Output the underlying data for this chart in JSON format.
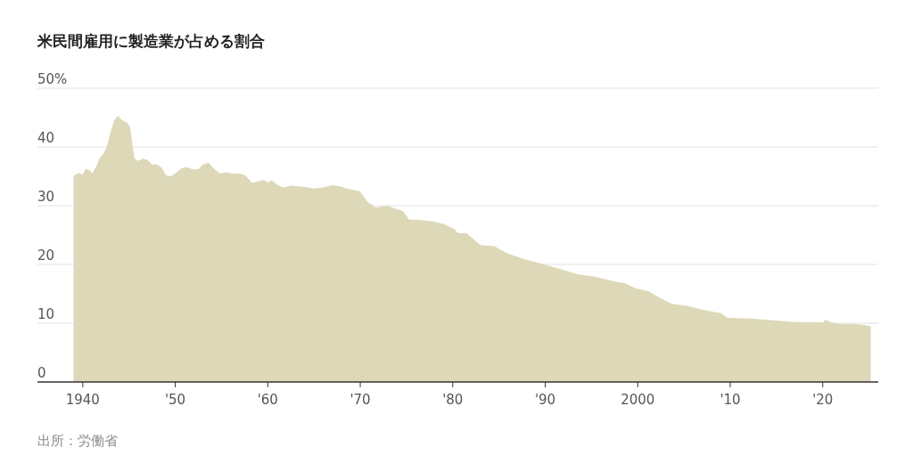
{
  "chart_data": {
    "type": "area",
    "title": "米民間雇用に製造業が占める割合",
    "annotations": [
      "出所：労働省"
    ],
    "xlim": [
      1935.1,
      2026
    ],
    "ylim": [
      0,
      50
    ],
    "xticks": [
      {
        "value": 1940,
        "label": "1940"
      },
      {
        "value": 1950,
        "label": "'50"
      },
      {
        "value": 1960,
        "label": "'60"
      },
      {
        "value": 1970,
        "label": "'70"
      },
      {
        "value": 1980,
        "label": "'80"
      },
      {
        "value": 1990,
        "label": "'90"
      },
      {
        "value": 2000,
        "label": "2000"
      },
      {
        "value": 2010,
        "label": "'10"
      },
      {
        "value": 2020,
        "label": "'20"
      }
    ],
    "yticks": [
      0,
      10,
      20,
      30,
      40,
      {
        "value": 50,
        "label": "50%"
      }
    ],
    "grid": "y",
    "series": [
      {
        "color": "#ddd8b8",
        "x": [
          1939.0,
          1939.5,
          1940.0,
          1940.3,
          1940.8,
          1941.0,
          1941.5,
          1941.8,
          1942.3,
          1942.6,
          1943.0,
          1943.4,
          1943.8,
          1944.2,
          1944.7,
          1945.1,
          1945.4,
          1945.6,
          1946.0,
          1946.5,
          1947.0,
          1947.5,
          1948.0,
          1948.5,
          1949.0,
          1949.5,
          1950.0,
          1950.6,
          1951.2,
          1951.8,
          1952.5,
          1953.0,
          1953.6,
          1954.2,
          1954.8,
          1955.5,
          1956.3,
          1957.0,
          1957.6,
          1958.3,
          1959.2,
          1959.6,
          1960.0,
          1960.4,
          1961.0,
          1961.6,
          1962.5,
          1964.0,
          1965.0,
          1966.0,
          1967.0,
          1967.8,
          1968.5,
          1969.5,
          1970.0,
          1970.8,
          1971.7,
          1972.9,
          1974.6,
          1975.3,
          1976.1,
          1977.9,
          1979.0,
          1980.1,
          1980.6,
          1981.5,
          1983.0,
          1984.5,
          1985.9,
          1987.7,
          1989.9,
          1991.4,
          1993.6,
          1995.4,
          1997.5,
          1998.6,
          1999.7,
          2001.2,
          2002.3,
          2003.7,
          2005.2,
          2007.3,
          2009.0,
          2009.7,
          2012.1,
          2014.6,
          2017.2,
          2019.0,
          2020.0,
          2020.3,
          2020.8,
          2021.8,
          2023.9,
          2025.2
        ],
        "values": [
          35.0,
          35.6,
          35.3,
          36.3,
          36.0,
          35.5,
          36.8,
          38.0,
          39.0,
          40.0,
          42.5,
          44.5,
          45.3,
          44.6,
          44.2,
          43.5,
          40.0,
          38.0,
          37.6,
          38.0,
          37.8,
          37.0,
          37.0,
          36.5,
          35.2,
          35.0,
          35.5,
          36.3,
          36.6,
          36.2,
          36.2,
          37.0,
          37.3,
          36.3,
          35.5,
          35.7,
          35.4,
          35.5,
          35.1,
          33.9,
          34.2,
          34.4,
          33.9,
          34.3,
          33.6,
          33.1,
          33.4,
          33.2,
          32.9,
          33.1,
          33.5,
          33.3,
          32.9,
          32.6,
          32.4,
          30.6,
          29.7,
          30.0,
          29.1,
          27.6,
          27.6,
          27.3,
          26.9,
          26.1,
          25.3,
          25.3,
          23.3,
          23.1,
          21.9,
          20.9,
          20.0,
          19.3,
          18.3,
          17.9,
          17.1,
          16.8,
          16.0,
          15.4,
          14.4,
          13.3,
          13.0,
          12.2,
          11.7,
          10.9,
          10.8,
          10.5,
          10.2,
          10.2,
          10.1,
          10.6,
          10.2,
          9.9,
          9.8,
          9.5
        ]
      }
    ]
  }
}
